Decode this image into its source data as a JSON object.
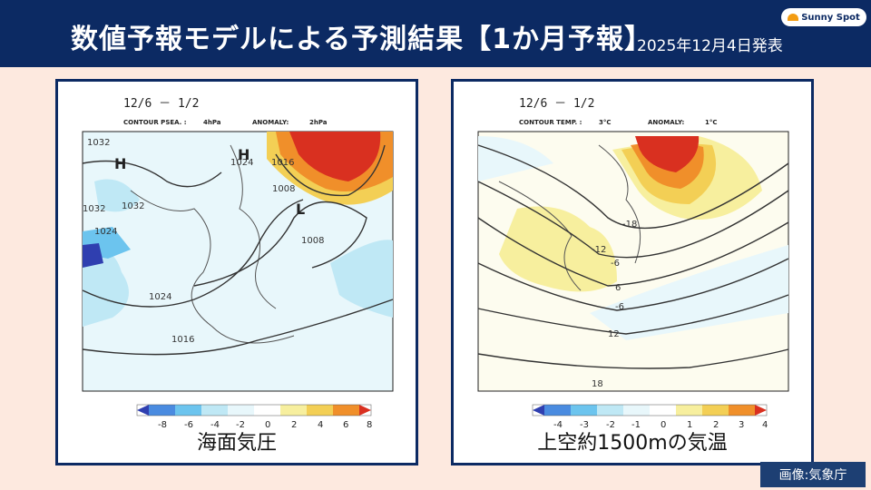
{
  "header": {
    "title": "数値予報モデルによる予測結果【1か月予報】",
    "date": "2025年12月4日発表",
    "logo_text": "Sunny Spot"
  },
  "left_panel": {
    "period": "12/6 － 1/2",
    "contour_label": "CONTOUR PSEA. :",
    "contour_value": "4hPa",
    "anomaly_label": "ANOMALY:",
    "anomaly_value": "2hPa",
    "isobars": [
      "1032",
      "1032",
      "1032",
      "1024",
      "1024",
      "1024",
      "1016",
      "1016",
      "1008",
      "1008"
    ],
    "pressure_marks": [
      "H",
      "H",
      "L"
    ],
    "colorbar_ticks": [
      "-8",
      "-6",
      "-4",
      "-2",
      "0",
      "2",
      "4",
      "6",
      "8"
    ],
    "caption": "海面気圧"
  },
  "right_panel": {
    "period": "12/6 － 1/2",
    "contour_label": "CONTOUR TEMP. :",
    "contour_value": "3°C",
    "anomaly_label": "ANOMALY:",
    "anomaly_value": "1°C",
    "isotherms": [
      "-18",
      "-12",
      "-6",
      "-6",
      "6",
      "12",
      "18"
    ],
    "colorbar_ticks": [
      "-4",
      "-3",
      "-2",
      "-1",
      "0",
      "1",
      "2",
      "3",
      "4"
    ],
    "caption": "上空約1500mの気温"
  },
  "colors": {
    "header_bg": "#0c2a63",
    "page_bg": "#fde9df",
    "anomaly_scale": [
      "#2f3fb0",
      "#4a8be0",
      "#6cc4ee",
      "#bfe8f5",
      "#e8f7fb",
      "#ffffff",
      "#f7ef9e",
      "#f3cf55",
      "#f08f2a",
      "#d93020"
    ]
  },
  "credit": "画像:気象庁"
}
